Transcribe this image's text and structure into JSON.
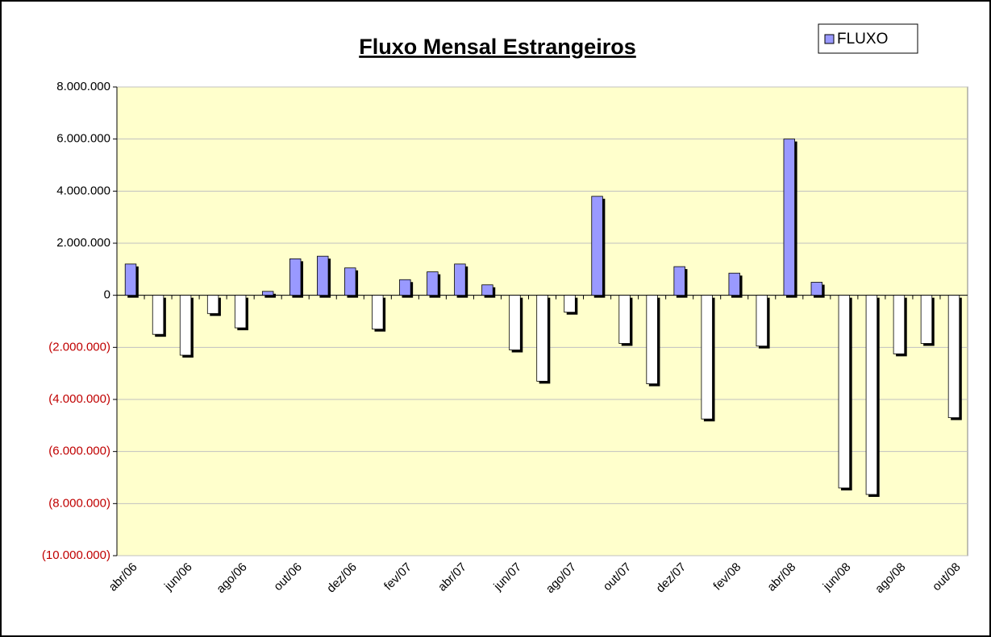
{
  "chart_data": {
    "type": "bar",
    "title": "Fluxo Mensal Estrangeiros",
    "categories": [
      "abr/06",
      null,
      "jun/06",
      null,
      "ago/06",
      null,
      "out/06",
      null,
      "dez/06",
      null,
      "fev/07",
      null,
      "abr/07",
      null,
      "jun/07",
      null,
      "ago/07",
      null,
      "out/07",
      null,
      "dez/07",
      null,
      "fev/08",
      null,
      "abr/08",
      null,
      "jun/08",
      null,
      "ago/08",
      null,
      "out/08"
    ],
    "series": [
      {
        "name": "FLUXO",
        "color": "#9999ff",
        "negative_color": "#ffffff",
        "values": [
          1200000,
          -1500000,
          -2300000,
          -700000,
          -1250000,
          150000,
          1400000,
          1500000,
          1050000,
          -1300000,
          600000,
          900000,
          1200000,
          400000,
          -2100000,
          -3300000,
          -650000,
          3800000,
          -1850000,
          -3400000,
          1100000,
          -4750000,
          850000,
          -1950000,
          6000000,
          500000,
          -7400000,
          -7650000,
          -2250000,
          -1850000,
          -4700000
        ]
      }
    ],
    "ylim": [
      -10000000,
      8000000
    ],
    "yticks": [
      {
        "value": 8000000,
        "label": "8.000.000"
      },
      {
        "value": 6000000,
        "label": "6.000.000"
      },
      {
        "value": 4000000,
        "label": "4.000.000"
      },
      {
        "value": 2000000,
        "label": "2.000.000"
      },
      0,
      {
        "value": -2000000,
        "label": "(2.000.000)"
      },
      {
        "value": -4000000,
        "label": "(4.000.000)"
      },
      {
        "value": -6000000,
        "label": "(6.000.000)"
      },
      {
        "value": -8000000,
        "label": "(8.000.000)"
      },
      {
        "value": -10000000,
        "label": "(10.000.000)"
      }
    ],
    "negative_tick_color": "#c00000",
    "grid": true,
    "legend": "top-right",
    "plot_background": "#ffffcc"
  }
}
